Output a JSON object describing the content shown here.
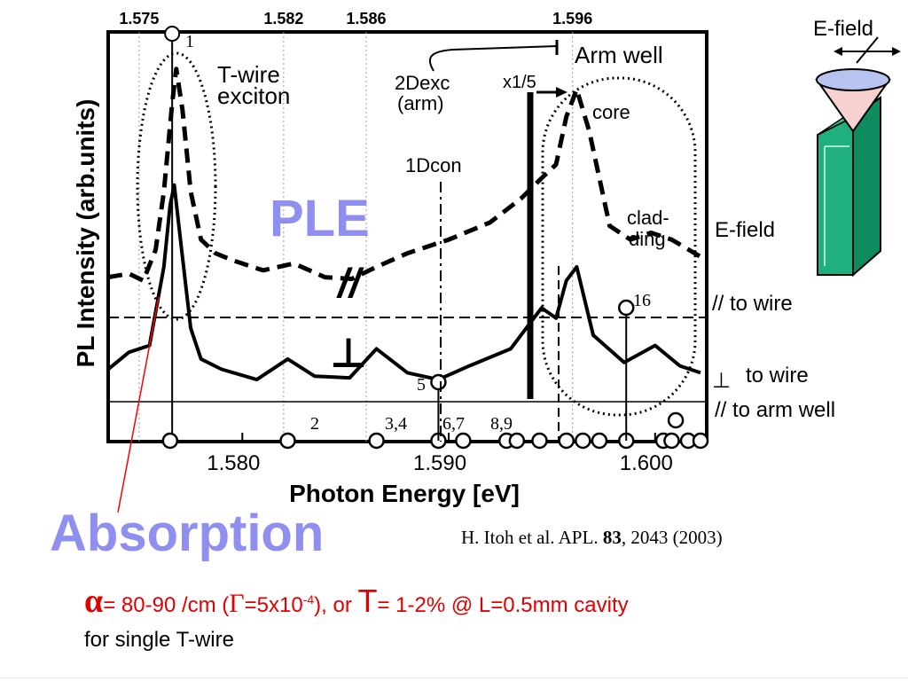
{
  "chart_data": {
    "type": "line",
    "xlabel": "Photon Energy [eV]",
    "ylabel": "PL Intensity (arb.units)",
    "xlim": [
      1.5735,
      1.6025
    ],
    "ylim": [
      0,
      1
    ],
    "x_ticks": [
      "1.580",
      "1.590",
      "1.600"
    ],
    "top_ticks": [
      "1.575",
      "1.582",
      "1.586",
      "1.596"
    ],
    "grid": false,
    "series": [
      {
        "name": "//",
        "style": "dashed",
        "points": [
          [
            1.5735,
            0.37
          ],
          [
            1.5745,
            0.38
          ],
          [
            1.5752,
            0.36
          ],
          [
            1.5758,
            0.45
          ],
          [
            1.5762,
            0.62
          ],
          [
            1.5766,
            0.88
          ],
          [
            1.5768,
            0.98
          ],
          [
            1.5771,
            0.86
          ],
          [
            1.5775,
            0.62
          ],
          [
            1.578,
            0.48
          ],
          [
            1.5787,
            0.44
          ],
          [
            1.5795,
            0.42
          ],
          [
            1.581,
            0.39
          ],
          [
            1.5825,
            0.41
          ],
          [
            1.584,
            0.37
          ],
          [
            1.5853,
            0.365
          ],
          [
            1.5865,
            0.4
          ],
          [
            1.588,
            0.44
          ],
          [
            1.59,
            0.48
          ],
          [
            1.592,
            0.53
          ],
          [
            1.5935,
            0.6
          ],
          [
            1.5945,
            0.66
          ],
          [
            1.5952,
            0.7
          ],
          [
            1.5957,
            0.84
          ],
          [
            1.5962,
            0.92
          ],
          [
            1.5968,
            0.8
          ],
          [
            1.5978,
            0.52
          ],
          [
            1.5988,
            0.48
          ],
          [
            1.5998,
            0.5
          ],
          [
            1.6008,
            0.48
          ],
          [
            1.6022,
            0.43
          ]
        ]
      },
      {
        "name": "⊥",
        "style": "solid",
        "points": [
          [
            1.5735,
            0.1
          ],
          [
            1.5745,
            0.15
          ],
          [
            1.5755,
            0.17
          ],
          [
            1.5762,
            0.4
          ],
          [
            1.5765,
            0.58
          ],
          [
            1.5767,
            0.64
          ],
          [
            1.577,
            0.48
          ],
          [
            1.5775,
            0.22
          ],
          [
            1.578,
            0.13
          ],
          [
            1.579,
            0.1
          ],
          [
            1.5807,
            0.07
          ],
          [
            1.5822,
            0.13
          ],
          [
            1.5835,
            0.08
          ],
          [
            1.5852,
            0.075
          ],
          [
            1.5865,
            0.16
          ],
          [
            1.588,
            0.09
          ],
          [
            1.5895,
            0.07
          ],
          [
            1.591,
            0.11
          ],
          [
            1.593,
            0.16
          ],
          [
            1.5945,
            0.28
          ],
          [
            1.5952,
            0.25
          ],
          [
            1.5957,
            0.36
          ],
          [
            1.5962,
            0.4
          ],
          [
            1.597,
            0.2
          ],
          [
            1.5985,
            0.12
          ],
          [
            1.6,
            0.17
          ],
          [
            1.6012,
            0.11
          ],
          [
            1.6022,
            0.09
          ]
        ]
      }
    ],
    "absorption_markers": [
      1.5765,
      1.5822,
      1.5865,
      1.5895,
      1.5907,
      1.5928,
      1.5933,
      1.5944,
      1.5957,
      1.5965,
      1.5973,
      1.5986,
      1.6004,
      1.6008,
      1.6016,
      1.6022
    ],
    "annotations": {
      "marker_1": "1",
      "marker_2": "2",
      "marker_34": "3,4",
      "marker_67": "6,7",
      "marker_89": "8,9",
      "marker_5": "5",
      "marker_16": "16",
      "twire": "T-wire",
      "exciton": "exciton",
      "dexc": "2Dexc",
      "arm_paren": "(arm)",
      "x15": "x1/5",
      "arm_well": "Arm well",
      "core": "core",
      "d1con": "1Dcon",
      "clad": "clad-",
      "ding": "ding",
      "ple": "PLE",
      "parallel": "//",
      "perp": "⊥"
    }
  },
  "labels": {
    "efield_top": "E-field",
    "efield_mid": "E-field",
    "para_wire": "// to wire",
    "perp_symbol": "⊥",
    "perp_wire": "to wire",
    "para_arm": "// to arm well",
    "absorption": "Absorption",
    "citation_authors": "H. Itoh et al. APL. ",
    "citation_volume": "83",
    "citation_rest": ", 2043 (2003)",
    "alpha_symbol": "α",
    "alpha_text": "= 80-90 /cm  (",
    "gamma_symbol": "Γ",
    "gamma_text": "=5x10",
    "gamma_exp": "-4",
    "or_text": "), or ",
    "T_symbol": "T",
    "T_text": "= 1-2% @ L=0.5mm cavity",
    "line2": "for single T-wire"
  },
  "colors": {
    "ple": "#8f8ff0",
    "absorption": "#8f8ff0",
    "formula": "#e00000",
    "wire_green": "#1fb07e",
    "cone": "#f7d0d0",
    "cone_top": "#b8c4f0",
    "pointer": "#ff0000"
  }
}
